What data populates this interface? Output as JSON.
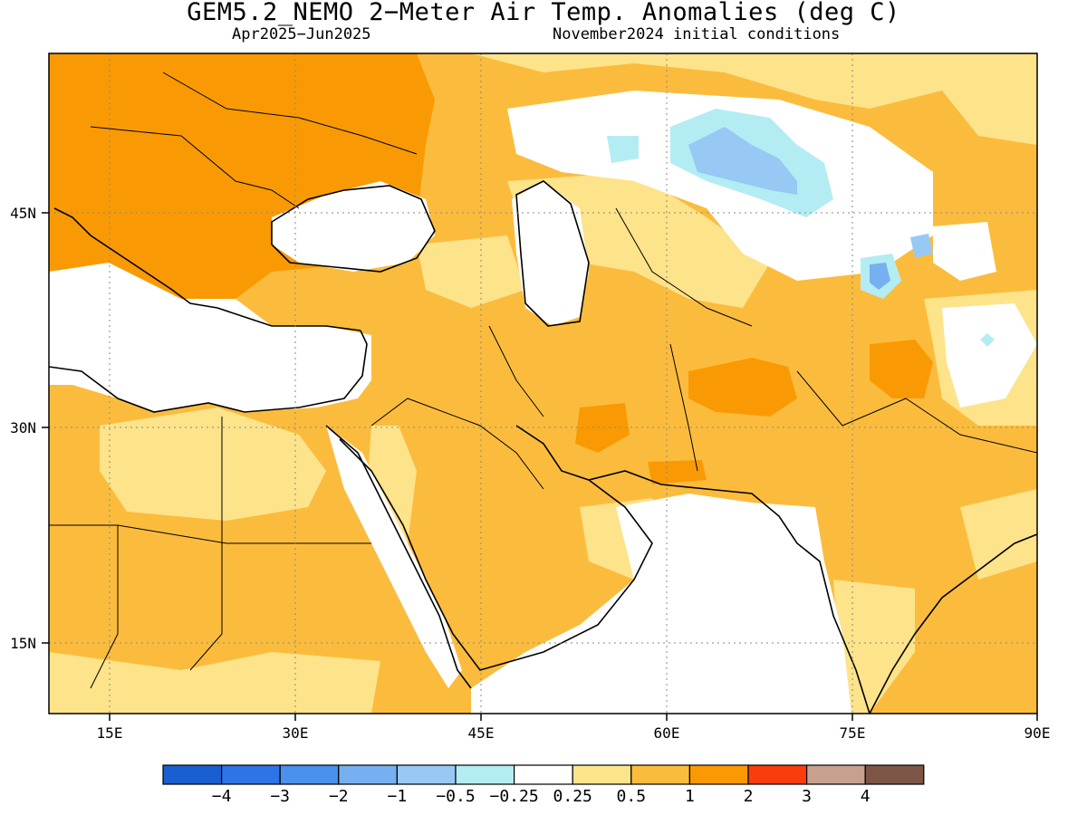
{
  "title": "GEM5.2_NEMO 2−Meter Air Temp. Anomalies (deg C)",
  "subtitle_left": "Apr2025−Jun2025",
  "subtitle_right": "November2024 initial conditions",
  "x_ticks": [
    "15E",
    "30E",
    "45E",
    "60E",
    "75E",
    "90E"
  ],
  "y_ticks": [
    "45N",
    "30N",
    "15N"
  ],
  "colorbar": {
    "colors": [
      "#1a5fd0",
      "#2f74e6",
      "#4a90ec",
      "#76b0f0",
      "#98c9f4",
      "#b4ecf4",
      "#ffffff",
      "#fde38a",
      "#fbbc3d",
      "#f99a04",
      "#fa3d0c",
      "#c8a090",
      "#7d5546"
    ],
    "labels": [
      "−4",
      "−3",
      "−2",
      "−1",
      "−0.5",
      "−0.25",
      "0.25",
      "0.5",
      "1",
      "2",
      "3",
      "4"
    ]
  },
  "legend_colors": {
    "white": "#ffffff",
    "light_yellow": "#fde38a",
    "light_orange": "#fbbc3d",
    "orange": "#f99a04",
    "light_blue": "#98c9f4",
    "cyan": "#b4ecf4",
    "blue": "#76b0f0"
  }
}
